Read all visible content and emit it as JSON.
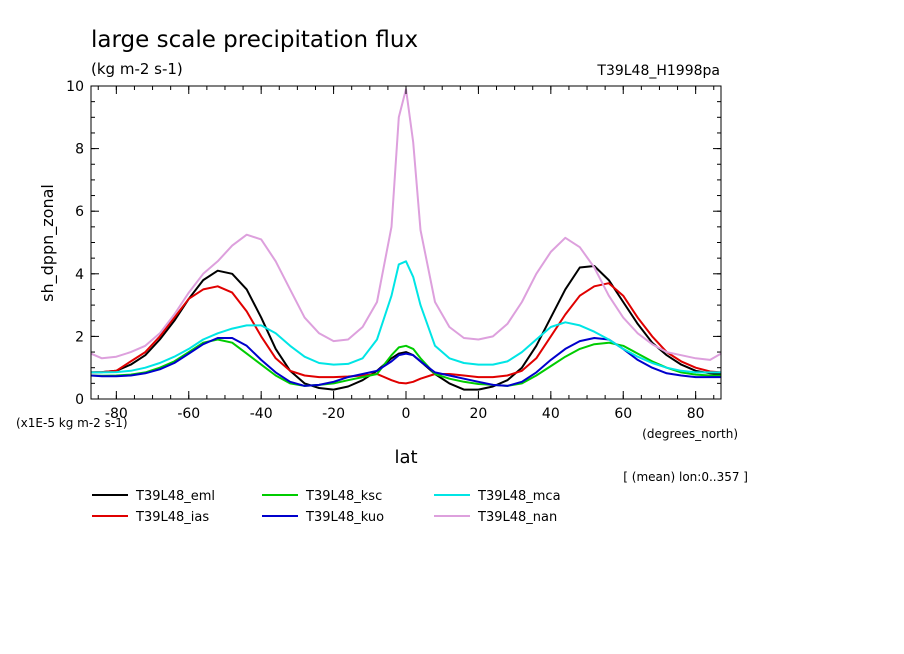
{
  "chart_data": {
    "type": "line",
    "title": "large scale precipitation flux",
    "units_subtitle": "(kg m-2 s-1)",
    "run_label": "T39L48_H1998pa",
    "ylabel": "sh_dppn_zonal",
    "xlabel": "lat",
    "x_units": "(degrees_north)",
    "scale_note": "(x1E-5 kg m-2 s-1)",
    "mean_note": "[ (mean) lon:0..357 ]",
    "xlim": [
      -87,
      87
    ],
    "ylim": [
      0,
      10
    ],
    "x_ticks": [
      -80,
      -60,
      -40,
      -20,
      0,
      20,
      40,
      60,
      80
    ],
    "x_tick_labels": [
      "-80",
      "-60",
      "-40",
      "-20",
      "0",
      "20",
      "40",
      "60",
      "80"
    ],
    "y_ticks": [
      0,
      2,
      4,
      6,
      8,
      10
    ],
    "y_tick_labels": [
      "0",
      "2",
      "4",
      "6",
      "8",
      "10"
    ],
    "grid": false,
    "legend_position": "bottom",
    "x": [
      -87,
      -84,
      -80,
      -76,
      -72,
      -68,
      -64,
      -60,
      -56,
      -52,
      -48,
      -44,
      -40,
      -36,
      -32,
      -28,
      -24,
      -20,
      -16,
      -12,
      -8,
      -4,
      -2,
      0,
      2,
      4,
      8,
      12,
      16,
      20,
      24,
      28,
      32,
      36,
      40,
      44,
      48,
      52,
      56,
      60,
      64,
      68,
      72,
      76,
      80,
      84,
      87
    ],
    "series": [
      {
        "name": "T39L48_eml",
        "color": "#000000",
        "values": [
          0.85,
          0.86,
          0.9,
          1.1,
          1.4,
          1.9,
          2.5,
          3.2,
          3.8,
          4.1,
          4.0,
          3.5,
          2.6,
          1.6,
          0.9,
          0.5,
          0.35,
          0.3,
          0.4,
          0.6,
          0.9,
          1.3,
          1.45,
          1.5,
          1.4,
          1.2,
          0.8,
          0.5,
          0.3,
          0.3,
          0.4,
          0.6,
          1.0,
          1.7,
          2.6,
          3.5,
          4.2,
          4.25,
          3.8,
          3.1,
          2.4,
          1.8,
          1.4,
          1.1,
          0.9,
          0.82,
          0.8
        ]
      },
      {
        "name": "T39L48_ias",
        "color": "#e00000",
        "values": [
          0.85,
          0.86,
          0.9,
          1.2,
          1.5,
          2.0,
          2.6,
          3.2,
          3.5,
          3.6,
          3.4,
          2.8,
          2.0,
          1.3,
          0.9,
          0.75,
          0.7,
          0.7,
          0.72,
          0.75,
          0.8,
          0.6,
          0.52,
          0.5,
          0.55,
          0.65,
          0.8,
          0.8,
          0.75,
          0.7,
          0.7,
          0.75,
          0.9,
          1.3,
          2.0,
          2.7,
          3.3,
          3.6,
          3.7,
          3.3,
          2.6,
          2.0,
          1.5,
          1.2,
          1.0,
          0.88,
          0.85
        ]
      },
      {
        "name": "T39L48_ksc",
        "color": "#00cc00",
        "values": [
          0.75,
          0.74,
          0.75,
          0.78,
          0.85,
          1.0,
          1.2,
          1.5,
          1.8,
          1.9,
          1.8,
          1.45,
          1.1,
          0.75,
          0.5,
          0.42,
          0.45,
          0.5,
          0.6,
          0.7,
          0.8,
          1.4,
          1.65,
          1.7,
          1.6,
          1.3,
          0.8,
          0.65,
          0.55,
          0.48,
          0.45,
          0.42,
          0.5,
          0.75,
          1.05,
          1.35,
          1.6,
          1.75,
          1.8,
          1.7,
          1.45,
          1.2,
          1.0,
          0.85,
          0.78,
          0.75,
          0.75
        ]
      },
      {
        "name": "T39L48_kuo",
        "color": "#0000cc",
        "values": [
          0.75,
          0.73,
          0.73,
          0.75,
          0.82,
          0.95,
          1.15,
          1.45,
          1.75,
          1.95,
          1.95,
          1.7,
          1.25,
          0.85,
          0.55,
          0.42,
          0.45,
          0.55,
          0.7,
          0.8,
          0.9,
          1.2,
          1.4,
          1.45,
          1.4,
          1.2,
          0.85,
          0.75,
          0.65,
          0.55,
          0.45,
          0.42,
          0.55,
          0.85,
          1.25,
          1.6,
          1.85,
          1.95,
          1.9,
          1.6,
          1.25,
          1.0,
          0.82,
          0.75,
          0.7,
          0.7,
          0.7
        ]
      },
      {
        "name": "T39L48_mca",
        "color": "#00e5e5",
        "values": [
          0.85,
          0.85,
          0.86,
          0.9,
          1.0,
          1.15,
          1.35,
          1.6,
          1.9,
          2.1,
          2.25,
          2.35,
          2.35,
          2.1,
          1.7,
          1.35,
          1.15,
          1.1,
          1.12,
          1.3,
          1.9,
          3.3,
          4.3,
          4.4,
          3.9,
          3.0,
          1.7,
          1.3,
          1.15,
          1.1,
          1.1,
          1.2,
          1.5,
          1.9,
          2.3,
          2.45,
          2.35,
          2.15,
          1.9,
          1.6,
          1.35,
          1.15,
          1.0,
          0.9,
          0.85,
          0.85,
          0.85
        ]
      },
      {
        "name": "T39L48_nan",
        "color": "#dda0dd",
        "values": [
          1.45,
          1.3,
          1.35,
          1.5,
          1.7,
          2.1,
          2.7,
          3.4,
          4.0,
          4.4,
          4.9,
          5.25,
          5.1,
          4.4,
          3.5,
          2.6,
          2.1,
          1.85,
          1.9,
          2.3,
          3.1,
          5.5,
          9.0,
          9.9,
          8.2,
          5.4,
          3.1,
          2.3,
          1.95,
          1.9,
          2.0,
          2.4,
          3.1,
          4.0,
          4.7,
          5.15,
          4.85,
          4.2,
          3.3,
          2.6,
          2.1,
          1.75,
          1.5,
          1.4,
          1.3,
          1.25,
          1.45
        ]
      }
    ]
  }
}
